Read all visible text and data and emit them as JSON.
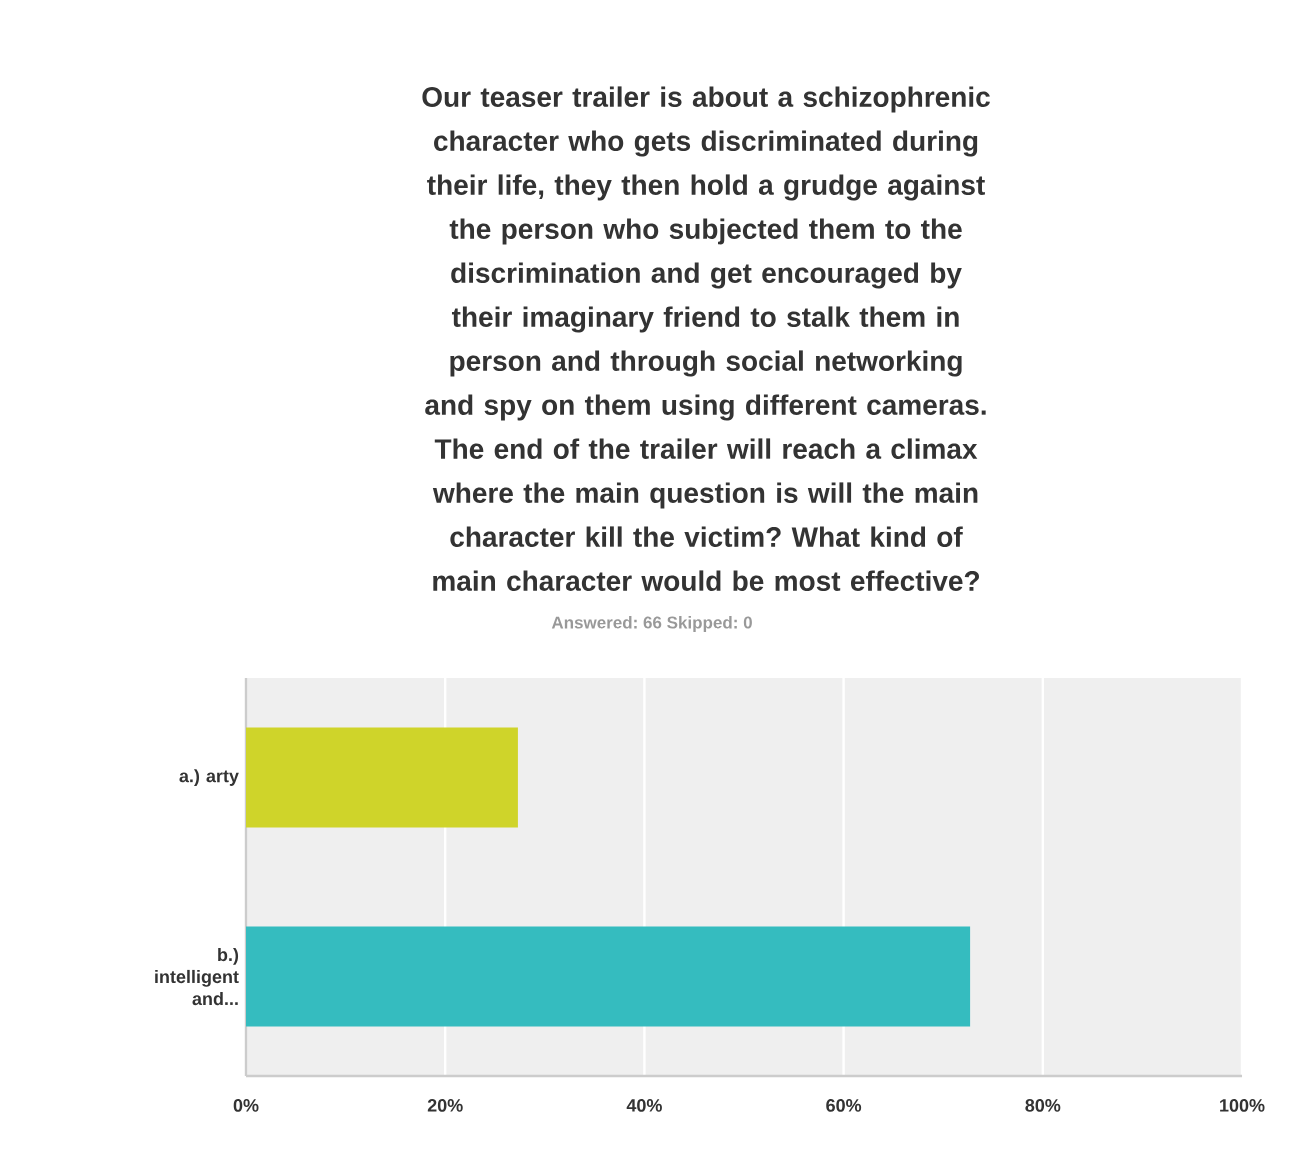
{
  "chart_data": {
    "type": "bar",
    "orientation": "horizontal",
    "title": "Our teaser trailer is about a schizophrenic character who gets discriminated during their life, they then hold a grudge against the person who subjected them to the discrimination and get encouraged by their imaginary friend to stalk them in person and through social networking and spy on them using different cameras. The end of the trailer will reach a climax where the main question is will the main character kill the victim? What kind of main character would be most effective?",
    "subtitle": "Answered: 66    Skipped: 0",
    "categories": [
      "a.) arty",
      "b.) intelligent and..."
    ],
    "values": [
      27.3,
      72.7
    ],
    "colors": [
      "#cfd42a",
      "#35bcbf"
    ],
    "xlim": [
      0,
      100
    ],
    "xticks": [
      {
        "value": 0,
        "label": "0%"
      },
      {
        "value": 20,
        "label": "20%"
      },
      {
        "value": 40,
        "label": "40%"
      },
      {
        "value": 60,
        "label": "60%"
      },
      {
        "value": 80,
        "label": "80%"
      },
      {
        "value": 100,
        "label": "100%"
      }
    ],
    "grid": "x"
  }
}
